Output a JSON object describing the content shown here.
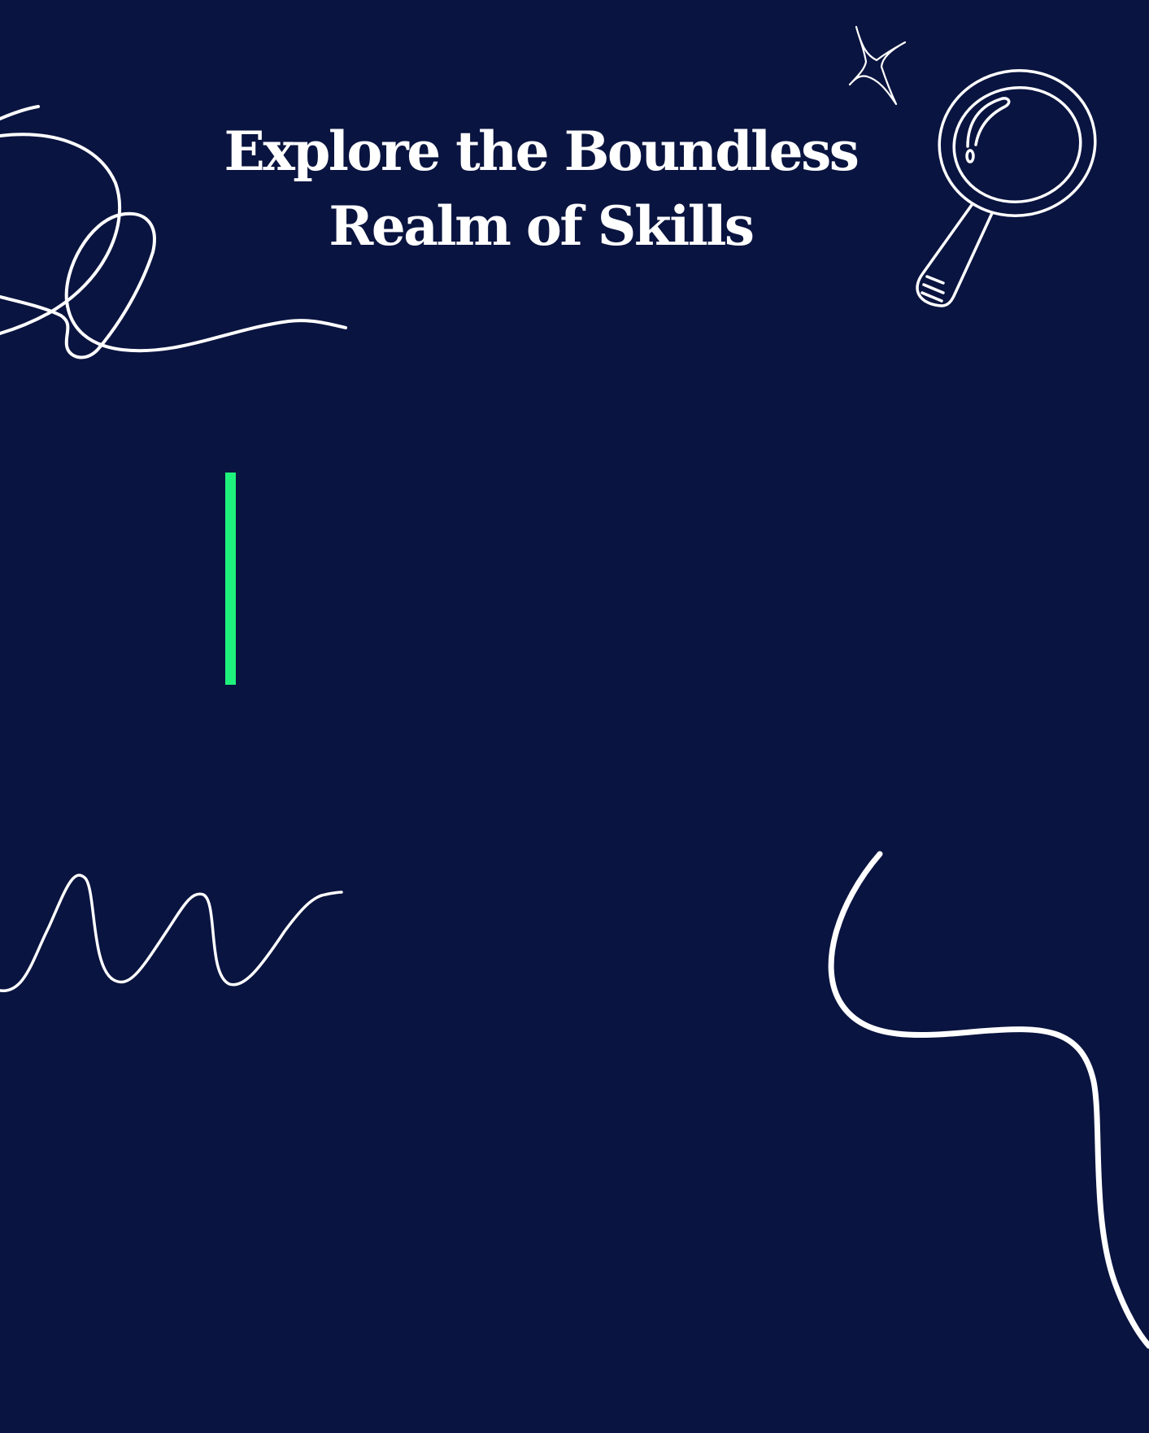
{
  "title": {
    "line1": "Explore the Boundless",
    "line2": "Realm of Skills"
  },
  "colors": {
    "background": "#0a1440",
    "text": "#ffffff",
    "accent": "#1ff27c",
    "stroke": "#ffffff"
  },
  "icons": {
    "magnifier": "magnifying-glass-icon",
    "sparkle": "sparkle-star-icon"
  }
}
